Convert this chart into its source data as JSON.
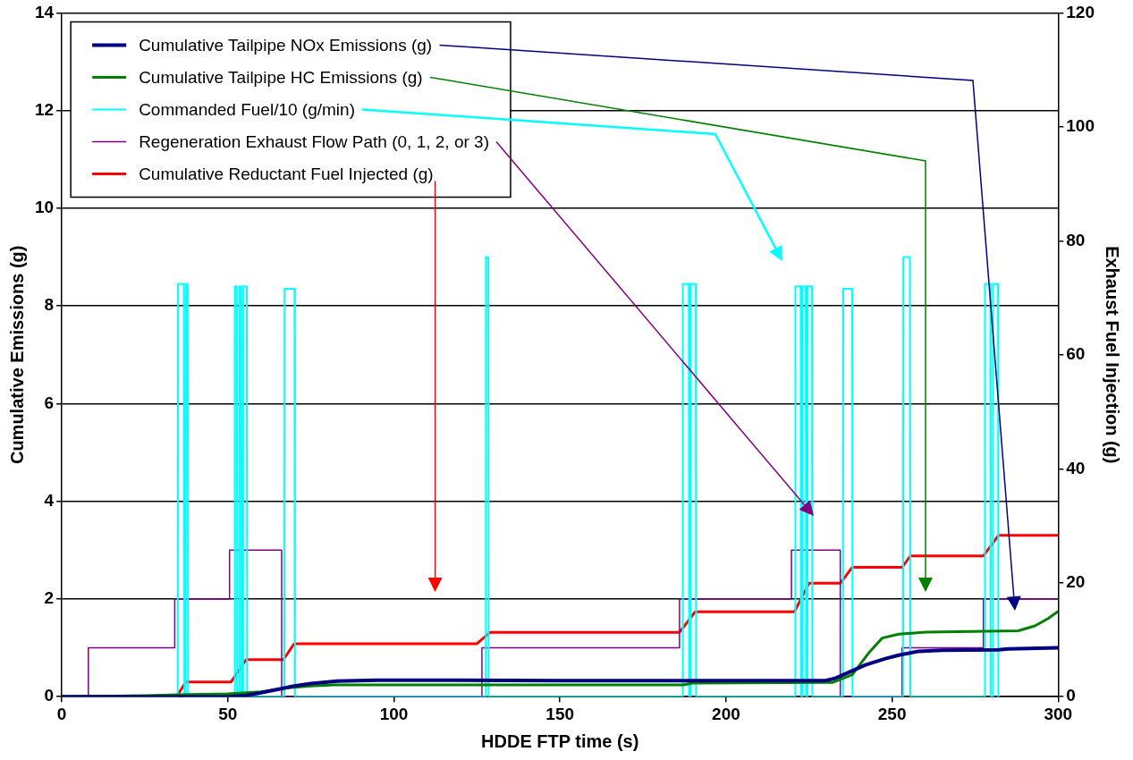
{
  "chart_data": {
    "type": "line",
    "xlabel": "HDDE FTP time (s)",
    "ylabel": "Cumulative Emissions (g)",
    "y2label": "Exhaust Fuel Injection (g)",
    "xlim": [
      0,
      300
    ],
    "xticks": [
      0,
      50,
      100,
      150,
      200,
      250,
      300
    ],
    "ylim": [
      0,
      14
    ],
    "yticks": [
      0,
      2,
      4,
      6,
      8,
      10,
      12,
      14
    ],
    "y2lim": [
      0,
      120
    ],
    "y2ticks": [
      0,
      20,
      40,
      60,
      80,
      100,
      120
    ],
    "grid": "y",
    "legend": "top left",
    "marker": "none",
    "line_style": "solid",
    "series": [
      {
        "name": "Cumulative Tailpipe NOx Emissions (g)",
        "color": "#000080",
        "x": [
          0,
          50,
          55,
          60,
          65,
          70,
          75,
          83,
          95,
          150,
          230,
          233,
          237,
          242,
          248,
          252,
          258,
          265,
          282,
          285,
          300
        ],
        "values": [
          0,
          0,
          0.02,
          0.08,
          0.15,
          0.22,
          0.27,
          0.32,
          0.34,
          0.33,
          0.33,
          0.38,
          0.5,
          0.65,
          0.78,
          0.85,
          0.93,
          0.95,
          0.96,
          0.98,
          1.0
        ]
      },
      {
        "name": "Cumulative Tailpipe HC Emissions (g)",
        "color": "#008000",
        "x": [
          0,
          25,
          35,
          50,
          60,
          68,
          75,
          82,
          187,
          190,
          232,
          238,
          243,
          247,
          252,
          260,
          288,
          293,
          297,
          300
        ],
        "values": [
          0,
          0.02,
          0.04,
          0.06,
          0.1,
          0.18,
          0.22,
          0.24,
          0.24,
          0.28,
          0.29,
          0.45,
          0.9,
          1.2,
          1.28,
          1.32,
          1.35,
          1.45,
          1.6,
          1.75
        ]
      },
      {
        "name": "Commanded Fuel/10 (g/min)",
        "color": "#00ffff",
        "x": [
          0,
          34.9,
          35,
          36.8,
          36.9,
          37.3,
          37.4,
          37.9,
          38,
          52,
          52.1,
          52.7,
          52.8,
          53.4,
          53.5,
          54,
          54.1,
          54.5,
          54.6,
          55.7,
          55.8,
          67,
          67.1,
          70.1,
          70.2,
          127.6,
          127.7,
          128.4,
          128.5,
          186.9,
          187,
          188.8,
          188.9,
          189.3,
          189.4,
          190.9,
          191,
          220.8,
          220.9,
          222.5,
          222.6,
          223,
          223.1,
          224,
          224.1,
          224.5,
          224.6,
          225.9,
          226,
          235.2,
          235.3,
          238,
          238.1,
          253.3,
          253.4,
          255.4,
          255.5,
          277.9,
          278,
          279.6,
          279.7,
          280.3,
          280.4,
          281.9,
          282
        ],
        "values": [
          0,
          0,
          8.45,
          8.45,
          0,
          0,
          8.45,
          8.45,
          0,
          0,
          8.4,
          8.4,
          0,
          0,
          8.4,
          8.4,
          0,
          0,
          8.4,
          8.4,
          0,
          0,
          8.35,
          8.35,
          0,
          0,
          9,
          9,
          0,
          0,
          8.45,
          8.45,
          0,
          0,
          8.45,
          8.45,
          0,
          0,
          8.4,
          8.4,
          0,
          0,
          8.4,
          8.4,
          0,
          0,
          8.4,
          8.4,
          0,
          0,
          8.35,
          8.35,
          0,
          0,
          9,
          9,
          0,
          0,
          8.45,
          8.45,
          0,
          0,
          8.45,
          8.45,
          0
        ]
      },
      {
        "name": "Regeneration Exhaust Flow Path (0, 1, 2, or 3)",
        "color": "#800080",
        "x": [
          0,
          8,
          8,
          34,
          34,
          50.5,
          50.5,
          66.2,
          66.2,
          126.5,
          126.5,
          186,
          186,
          219.7,
          219.7,
          234.4,
          234.4,
          253,
          253,
          277.5,
          277.5,
          300
        ],
        "values": [
          0,
          0,
          1,
          1,
          2,
          2,
          3,
          3,
          0,
          0,
          1,
          1,
          2,
          2,
          3,
          3,
          0,
          0,
          1,
          1,
          2,
          2
        ]
      },
      {
        "name": "Cumulative Reductant Fuel Injected (g)",
        "color": "#ff0000",
        "axis": "y2",
        "x": [
          0,
          34.5,
          37.4,
          51,
          55.5,
          66.7,
          70,
          125,
          129,
          186,
          190.7,
          220.6,
          225,
          234.4,
          238,
          253,
          255.5,
          277.5,
          282,
          300
        ],
        "values": [
          0,
          0,
          2.6,
          2.6,
          6.5,
          6.5,
          9.3,
          9.3,
          11.3,
          11.3,
          14.9,
          14.9,
          19.9,
          19.9,
          22.7,
          22.7,
          24.7,
          24.7,
          28.3,
          28.3
        ]
      }
    ]
  }
}
